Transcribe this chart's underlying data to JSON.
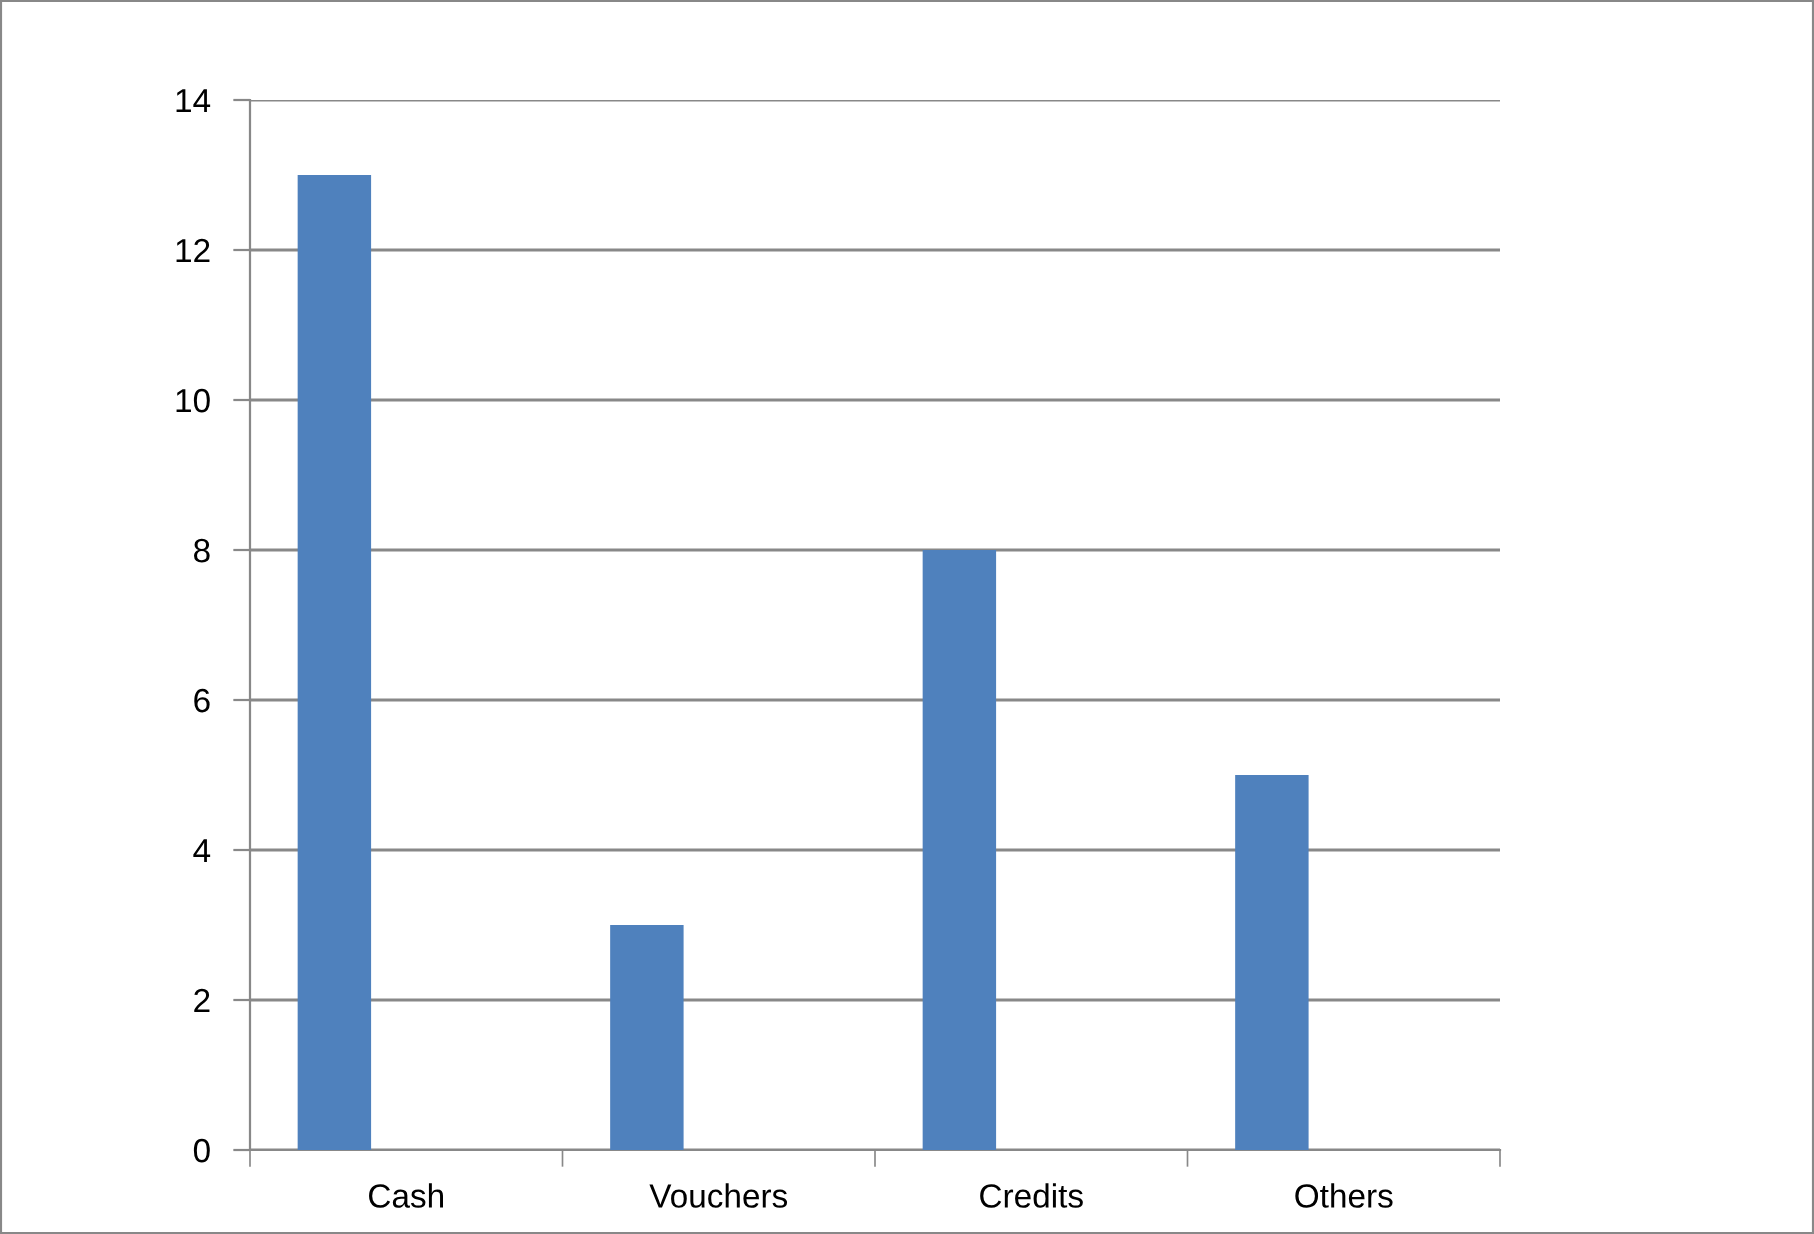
{
  "chart_data": {
    "type": "bar",
    "categories": [
      "Cash",
      "Vouchers",
      "Credits",
      "Others"
    ],
    "values": [
      13,
      3,
      8,
      5
    ],
    "color": "#4f81bd",
    "ylim": [
      0,
      14
    ],
    "yticks": [
      0,
      2,
      4,
      6,
      8,
      10,
      12,
      14
    ],
    "grid": "y"
  }
}
